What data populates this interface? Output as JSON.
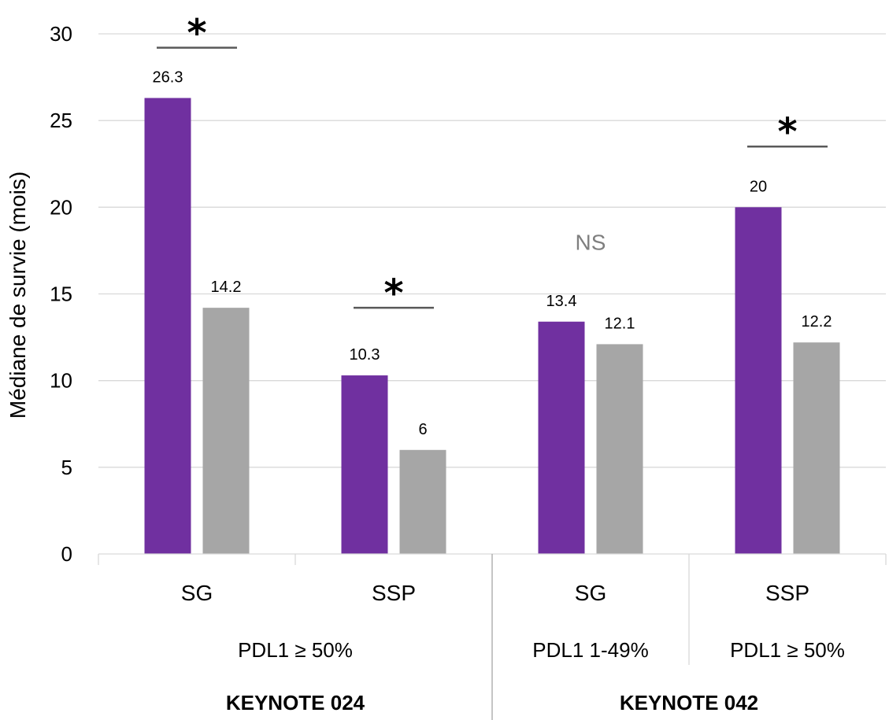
{
  "chart_data": {
    "type": "bar",
    "ylabel": "Médiane de survie (mois)",
    "xlabel": "",
    "ylim": [
      0,
      30
    ],
    "yticks": [
      0,
      5,
      10,
      15,
      20,
      25,
      30
    ],
    "grid": true,
    "legend": "none",
    "categories": [
      "SG",
      "SSP",
      "SG",
      "SSP"
    ],
    "series": [
      {
        "color": "#7030a0",
        "values": [
          26.3,
          10.3,
          13.4,
          20
        ]
      },
      {
        "color": "#a6a6a6",
        "values": [
          14.2,
          6,
          12.1,
          12.2
        ]
      }
    ],
    "value_labels": [
      [
        "26.3",
        "10.3",
        "13.4",
        "20"
      ],
      [
        "14.2",
        "6",
        "12.1",
        "12.2"
      ]
    ],
    "pdl1_groups": [
      {
        "label": "PDL1 ≥ 50%",
        "categories": [
          0,
          1
        ]
      },
      {
        "label": "PDL1 1-49%",
        "categories": [
          2
        ]
      },
      {
        "label": "PDL1 ≥ 50%",
        "categories": [
          3
        ]
      }
    ],
    "studies": [
      {
        "label": "KEYNOTE 024",
        "categories": [
          0,
          1
        ]
      },
      {
        "label": "KEYNOTE 042",
        "categories": [
          2,
          3
        ]
      }
    ],
    "annotations": [
      {
        "category": 0,
        "text": "*",
        "y": 29.2,
        "kind": "significant"
      },
      {
        "category": 1,
        "text": "*",
        "y": 14.2,
        "kind": "significant"
      },
      {
        "category": 2,
        "text": "NS",
        "y": 18,
        "kind": "not-significant"
      },
      {
        "category": 3,
        "text": "*",
        "y": 23.5,
        "kind": "significant"
      }
    ]
  }
}
